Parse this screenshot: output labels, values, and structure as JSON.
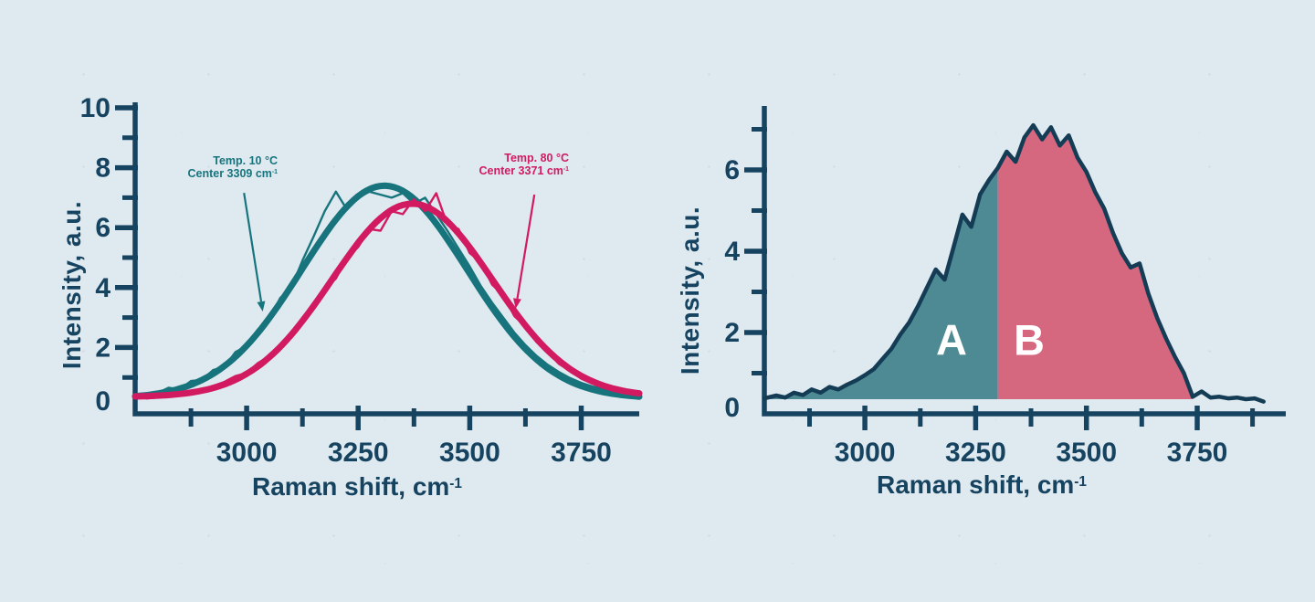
{
  "figure": {
    "background": "#dfe9f0",
    "ink": "#16435f",
    "teal": "#17747c",
    "crimson": "#d21a61",
    "area_teal": "#4d8a93",
    "area_pink": "#d5677f",
    "spectrum_line": "#143c55"
  },
  "left_chart": {
    "y_title": "Intensity, a.u.",
    "x_title_main": "Raman shift, cm",
    "x_title_sup": "-1",
    "annotations": {
      "cold": {
        "line1": "Temp. 10 °C",
        "line2_main": "Center 3309 cm",
        "line2_sup": "-1"
      },
      "hot": {
        "line1": "Temp. 80 °C",
        "line2_main": "Center 3371 cm",
        "line2_sup": "-1"
      }
    }
  },
  "right_chart": {
    "y_title": "Intensity, a.u.",
    "x_title_main": "Raman shift, cm",
    "x_title_sup": "-1",
    "region_a_label": "A",
    "region_b_label": "B"
  },
  "chart_data": [
    {
      "type": "line",
      "title": "Raman spectra at two temperatures with Gaussian fits",
      "xlabel": "Raman shift, cm⁻¹",
      "ylabel": "Intensity, a.u.",
      "xlim": [
        2750,
        3880
      ],
      "ylim": [
        0,
        10.3
      ],
      "grid": false,
      "x_major_ticks": [
        3000,
        3250,
        3500,
        3750
      ],
      "x_minor_ticks": [
        2875,
        3125,
        3375,
        3625
      ],
      "y_major_ticks": [
        0,
        2,
        4,
        6,
        8,
        10
      ],
      "y_minor_ticks": [
        1,
        3,
        5,
        7,
        9
      ],
      "series": [
        {
          "name": "fit_10C",
          "kind": "gaussian",
          "center": 3309,
          "amplitude": 7.1,
          "sigma": 185,
          "baseline": 0.3,
          "color": "#17747c",
          "width": 7
        },
        {
          "name": "raw_10C",
          "kind": "trace",
          "color": "#17747c",
          "width": 2.4,
          "x": [
            2775,
            2800,
            2825,
            2850,
            2875,
            2900,
            2925,
            2950,
            2975,
            3000,
            3025,
            3050,
            3075,
            3100,
            3125,
            3150,
            3175,
            3200,
            3225,
            3250,
            3275,
            3300,
            3325,
            3350,
            3375,
            3400,
            3425,
            3450,
            3475,
            3500,
            3525,
            3550,
            3575,
            3600,
            3625,
            3650,
            3675,
            3700,
            3725,
            3750,
            3775,
            3800,
            3825,
            3850,
            3875
          ],
          "y": [
            0.42,
            0.48,
            0.66,
            0.6,
            0.88,
            0.92,
            1.25,
            1.35,
            1.85,
            2.05,
            2.6,
            2.9,
            3.65,
            4.0,
            4.9,
            5.7,
            6.55,
            7.2,
            6.6,
            7.0,
            7.2,
            7.1,
            7.0,
            7.15,
            6.8,
            7.0,
            6.45,
            5.9,
            5.3,
            4.7,
            4.05,
            3.5,
            3.0,
            2.5,
            2.08,
            1.72,
            1.42,
            1.18,
            0.98,
            0.82,
            0.7,
            0.62,
            0.55,
            0.5,
            0.46
          ]
        },
        {
          "name": "fit_80C",
          "kind": "gaussian",
          "center": 3371,
          "amplitude": 6.45,
          "sigma": 180,
          "baseline": 0.35,
          "color": "#d21a61",
          "width": 7
        },
        {
          "name": "raw_80C",
          "kind": "trace",
          "color": "#d21a61",
          "width": 2.4,
          "x": [
            2775,
            2800,
            2825,
            2850,
            2875,
            2900,
            2925,
            2950,
            2975,
            3000,
            3025,
            3050,
            3075,
            3100,
            3125,
            3150,
            3175,
            3200,
            3225,
            3250,
            3275,
            3300,
            3325,
            3350,
            3375,
            3400,
            3425,
            3450,
            3475,
            3500,
            3525,
            3550,
            3575,
            3600,
            3625,
            3650,
            3675,
            3700,
            3725,
            3750,
            3775,
            3800,
            3825,
            3850,
            3875
          ],
          "y": [
            0.3,
            0.33,
            0.37,
            0.42,
            0.5,
            0.56,
            0.72,
            0.85,
            1.05,
            1.15,
            1.48,
            1.7,
            2.1,
            2.32,
            2.95,
            3.3,
            3.95,
            4.3,
            5.0,
            5.35,
            5.95,
            5.9,
            6.55,
            6.45,
            6.95,
            6.55,
            7.15,
            6.1,
            5.95,
            5.15,
            4.85,
            4.1,
            3.75,
            3.05,
            2.7,
            2.18,
            1.85,
            1.45,
            1.22,
            0.96,
            0.8,
            0.67,
            0.57,
            0.5,
            0.44
          ]
        }
      ],
      "annotations": [
        {
          "name": "cold",
          "text_lines": [
            "Temp. 10 °C",
            "Center 3309 cm⁻¹"
          ],
          "color": "#17747c",
          "arrow_from": [
            2994,
            7.16
          ],
          "arrow_to": [
            3036,
            3.2
          ]
        },
        {
          "name": "hot",
          "text_lines": [
            "Temp. 80 °C",
            "Center 3371 cm⁻¹"
          ],
          "color": "#d21a61",
          "arrow_from": [
            3645,
            7.1
          ],
          "arrow_to": [
            3603,
            3.3
          ]
        }
      ]
    },
    {
      "type": "area",
      "title": "Raman spectrum split into sub-band areas A and B",
      "xlabel": "Raman shift, cm⁻¹",
      "ylabel": "Intensity, a.u.",
      "xlim": [
        2773,
        3950
      ],
      "ylim": [
        0,
        7.6
      ],
      "grid": false,
      "x_major_ticks": [
        3000,
        3250,
        3500,
        3750
      ],
      "x_minor_ticks": [
        2875,
        3125,
        3375,
        3625,
        3875
      ],
      "y_major_ticks": [
        0,
        2,
        4,
        6
      ],
      "y_minor_ticks": [
        1,
        3,
        5,
        7
      ],
      "split_x": 3300,
      "fill_baseline": 0.36,
      "fill_end_x": 3740,
      "regions": [
        {
          "label": "A",
          "fill": "#4d8a93"
        },
        {
          "label": "B",
          "fill": "#d5677f"
        }
      ],
      "series": [
        {
          "name": "spectrum",
          "kind": "trace",
          "color": "#143c55",
          "width": 4.5,
          "x": [
            2773,
            2800,
            2820,
            2840,
            2860,
            2880,
            2900,
            2920,
            2940,
            2960,
            2980,
            3000,
            3020,
            3040,
            3060,
            3080,
            3100,
            3120,
            3140,
            3160,
            3180,
            3200,
            3220,
            3240,
            3260,
            3280,
            3300,
            3320,
            3340,
            3360,
            3380,
            3400,
            3420,
            3440,
            3460,
            3480,
            3500,
            3520,
            3540,
            3560,
            3580,
            3600,
            3620,
            3640,
            3660,
            3680,
            3700,
            3720,
            3740,
            3760,
            3780,
            3800,
            3820,
            3840,
            3860,
            3880,
            3900
          ],
          "y": [
            0.38,
            0.45,
            0.4,
            0.52,
            0.46,
            0.6,
            0.52,
            0.66,
            0.6,
            0.72,
            0.82,
            0.95,
            1.1,
            1.35,
            1.6,
            1.95,
            2.25,
            2.65,
            3.1,
            3.55,
            3.3,
            4.1,
            4.9,
            4.6,
            5.4,
            5.75,
            6.05,
            6.45,
            6.2,
            6.8,
            7.1,
            6.75,
            7.05,
            6.6,
            6.85,
            6.3,
            5.95,
            5.45,
            5.05,
            4.45,
            3.95,
            3.6,
            3.7,
            2.95,
            2.35,
            1.85,
            1.4,
            1.0,
            0.42,
            0.55,
            0.4,
            0.42,
            0.38,
            0.4,
            0.36,
            0.38,
            0.3
          ]
        }
      ]
    }
  ]
}
